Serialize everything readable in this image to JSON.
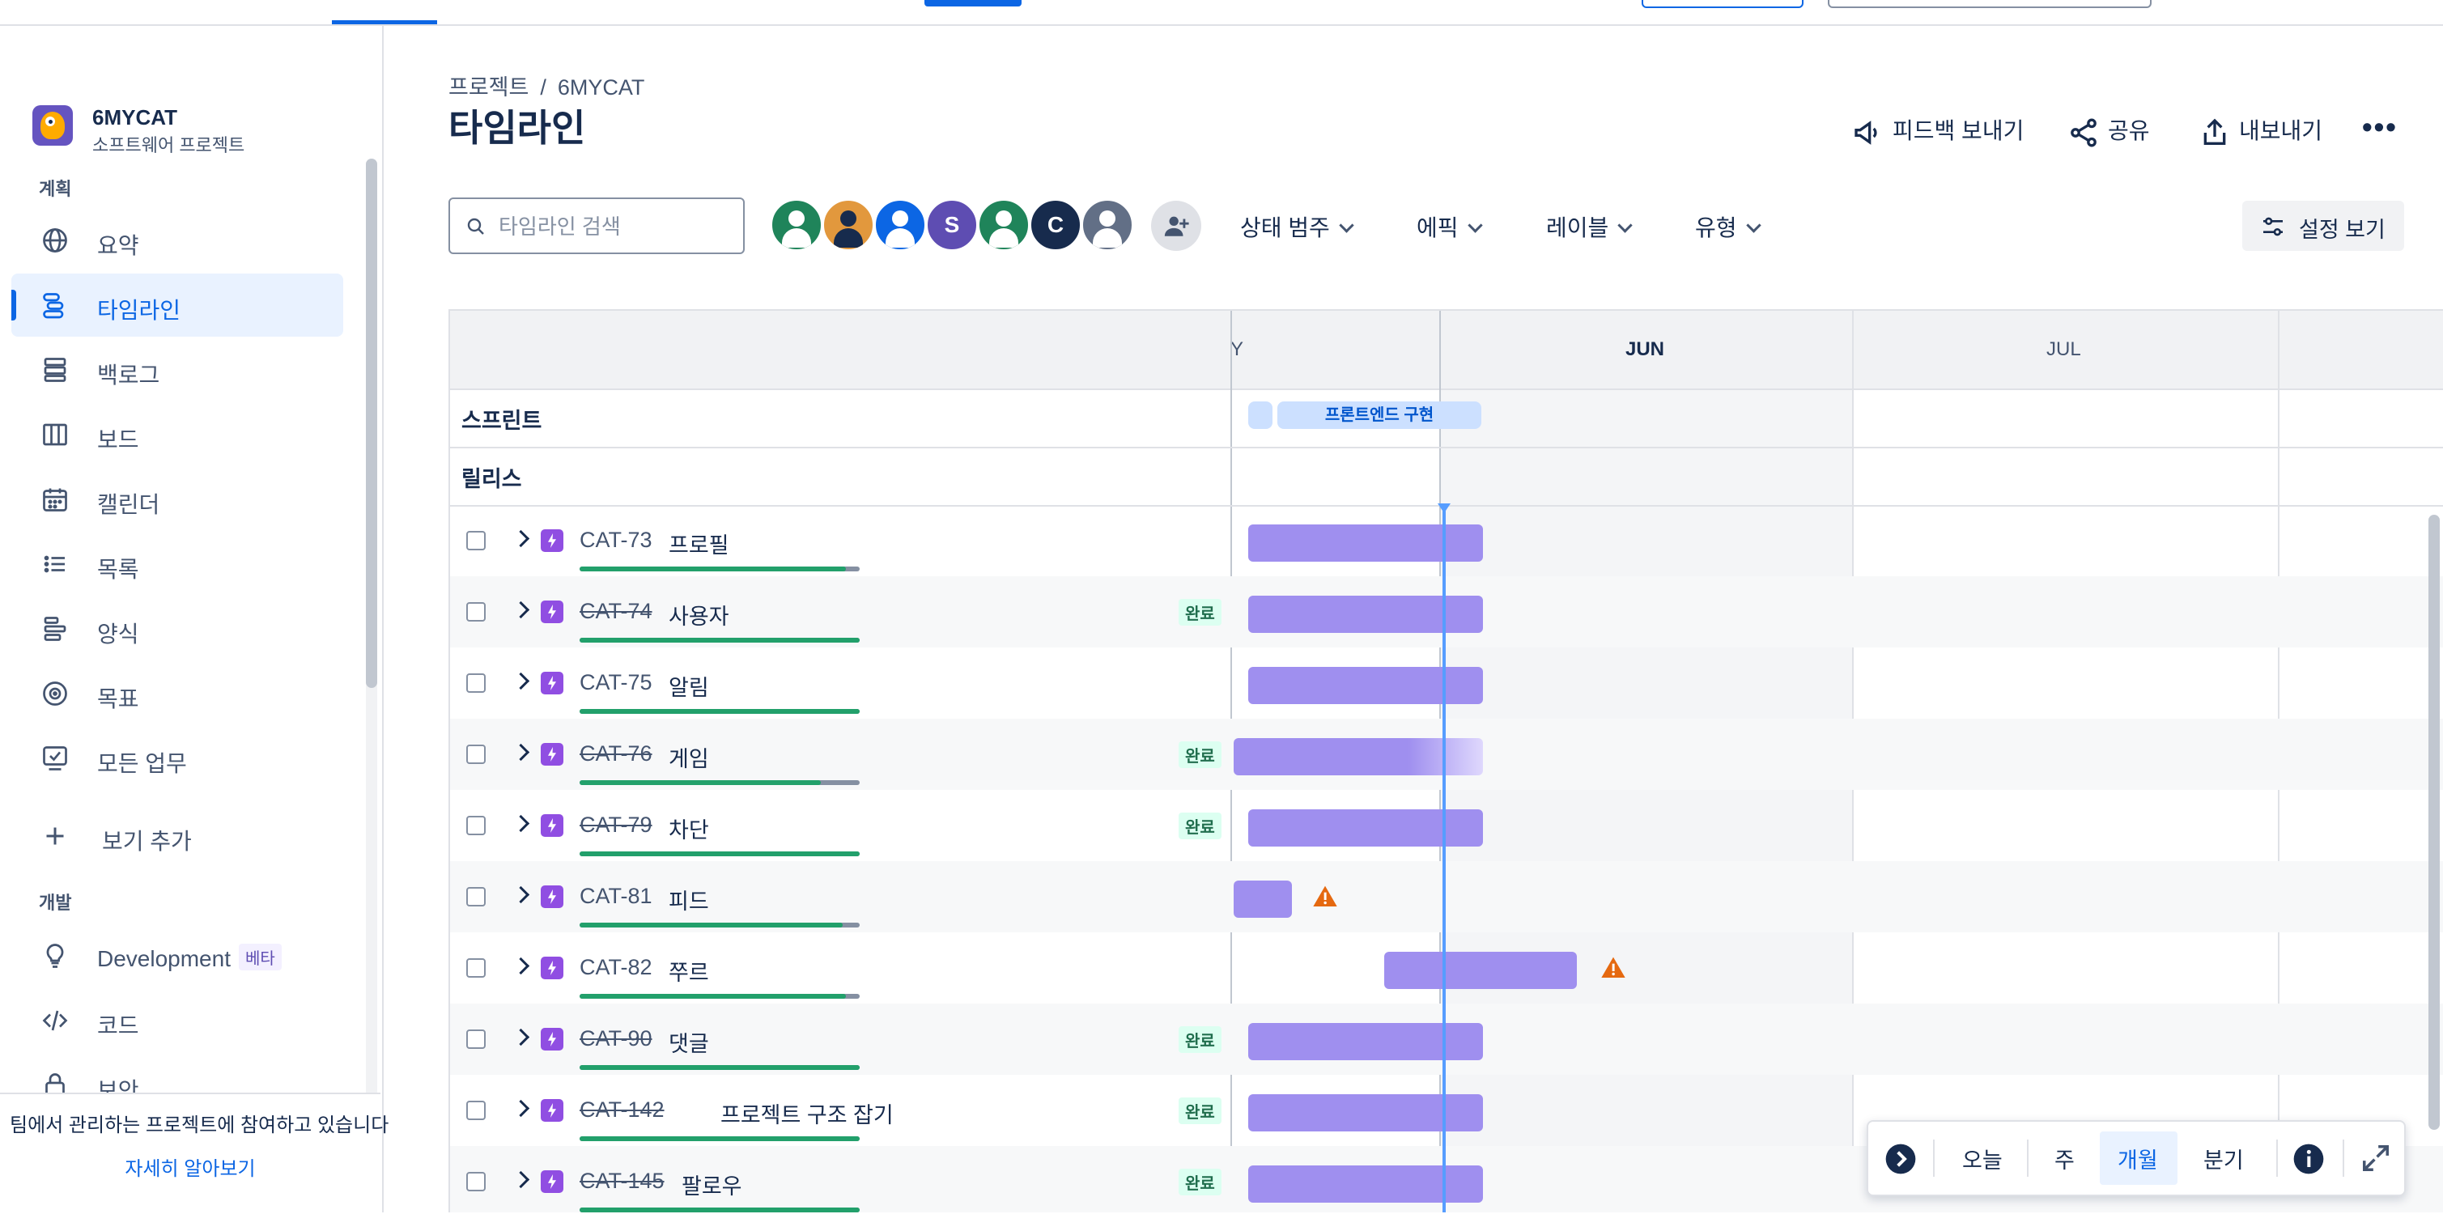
{
  "project": {
    "name": "6MYCAT",
    "type": "소프트웨어 프로젝트"
  },
  "sidebar": {
    "section_plan": "계획",
    "section_dev": "개발",
    "items": [
      {
        "label": "요약",
        "icon": "globe-icon"
      },
      {
        "label": "타임라인",
        "icon": "timeline-icon",
        "active": true
      },
      {
        "label": "백로그",
        "icon": "backlog-icon"
      },
      {
        "label": "보드",
        "icon": "board-icon"
      },
      {
        "label": "캘린더",
        "icon": "calendar-icon"
      },
      {
        "label": "목록",
        "icon": "list-icon"
      },
      {
        "label": "양식",
        "icon": "form-icon"
      },
      {
        "label": "목표",
        "icon": "goal-icon"
      },
      {
        "label": "모든 업무",
        "icon": "all-work-icon"
      }
    ],
    "add_view": "보기 추가",
    "dev_items": [
      {
        "label": "Development",
        "badge": "베타",
        "icon": "lightbulb-icon"
      },
      {
        "label": "코드",
        "icon": "code-icon"
      },
      {
        "label": "보안",
        "icon": "lock-icon"
      }
    ],
    "footer_text": "팀에서 관리하는 프로젝트에 참여하고 있습니다",
    "footer_link": "자세히 알아보기"
  },
  "breadcrumb": {
    "root": "프로젝트",
    "sep": "/",
    "project": "6MYCAT"
  },
  "page_title": "타임라인",
  "header_actions": {
    "feedback": "피드백 보내기",
    "share": "공유",
    "export": "내보내기"
  },
  "search": {
    "placeholder": "타임라인 검색",
    "value": ""
  },
  "avatars": [
    {
      "color": "#1f845a",
      "style": "light"
    },
    {
      "color": "#e2983d",
      "style": "dark"
    },
    {
      "color": "#0c66e4",
      "style": "light"
    },
    {
      "color": "#5e4db2",
      "initial": "S"
    },
    {
      "color": "#1f845a",
      "style": "light"
    },
    {
      "color": "#172b4d",
      "initial": "C"
    },
    {
      "color": "#626f86",
      "style": "light"
    }
  ],
  "filters": {
    "status": "상태 범주",
    "epic": "에픽",
    "label": "레이블",
    "type": "유형"
  },
  "view_settings": "설정 보기",
  "timeline": {
    "months": {
      "prev": "Y",
      "cur": "JUN",
      "next": "JUL"
    },
    "sprints_label": "스프린트",
    "releases_label": "릴리스",
    "sprint_name": "프론트엔드 구현",
    "issues": [
      {
        "key": "CAT-73",
        "summary": "프로필",
        "done": false,
        "progress": 0.95,
        "status": ""
      },
      {
        "key": "CAT-74",
        "summary": "사용자",
        "done": true,
        "progress": 1.0,
        "status": "완료"
      },
      {
        "key": "CAT-75",
        "summary": "알림",
        "done": false,
        "progress": 1.0,
        "status": ""
      },
      {
        "key": "CAT-76",
        "summary": "게임",
        "done": true,
        "progress": 0.86,
        "status": "완료"
      },
      {
        "key": "CAT-79",
        "summary": "차단",
        "done": true,
        "progress": 1.0,
        "status": "완료"
      },
      {
        "key": "CAT-81",
        "summary": "피드",
        "done": false,
        "progress": 0.94,
        "status": "",
        "warning": true
      },
      {
        "key": "CAT-82",
        "summary": "쭈르",
        "done": false,
        "progress": 0.95,
        "status": "",
        "warning": true
      },
      {
        "key": "CAT-90",
        "summary": "댓글",
        "done": true,
        "progress": 1.0,
        "status": "완료"
      },
      {
        "key": "CAT-142",
        "summary": "프로젝트 구조 잡기",
        "done": true,
        "progress": 1.0,
        "status": "완료"
      },
      {
        "key": "CAT-145",
        "summary": "팔로우",
        "done": true,
        "progress": 1.0,
        "status": "완료"
      }
    ]
  },
  "zoom": {
    "today": "오늘",
    "week": "주",
    "month": "개월",
    "quarter": "분기",
    "selected": "개월"
  }
}
